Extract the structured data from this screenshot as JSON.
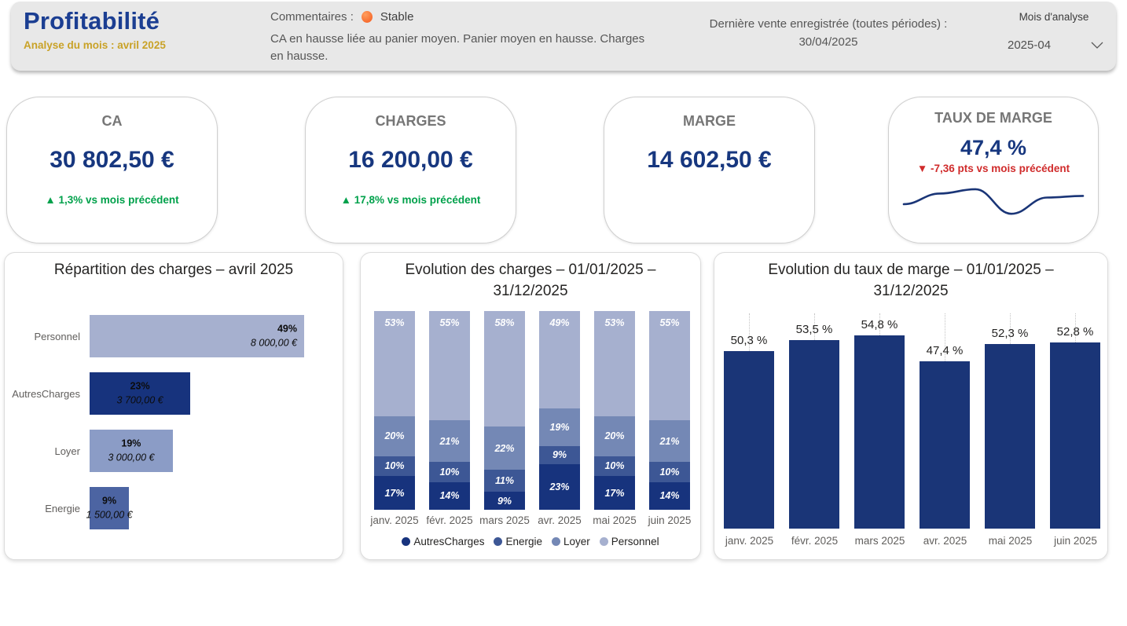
{
  "header": {
    "title": "Profitabilité",
    "subtitle": "Analyse du mois : avril 2025",
    "comments_label": "Commentaires :",
    "status": {
      "label": "Stable",
      "color": "#f4591d"
    },
    "comment_body": "CA en hausse liée au panier moyen. Panier moyen en hausse. Charges en hausse.",
    "last_sale_label": "Dernière vente enregistrée (toutes périodes) :",
    "last_sale_value": "30/04/2025",
    "month_filter": {
      "label": "Mois d'analyse",
      "value": "2025-04"
    }
  },
  "kpis": [
    {
      "title": "CA",
      "value": "30 802,50 €",
      "delta": "▲ 1,3% vs mois précédent",
      "trend": "up"
    },
    {
      "title": "CHARGES",
      "value": "16 200,00 €",
      "delta": "▲ 17,8% vs mois précédent",
      "trend": "up"
    },
    {
      "title": "MARGE",
      "value": "14 602,50 €",
      "delta": "",
      "trend": "none"
    },
    {
      "title": "TAUX DE MARGE",
      "value": "47,4 %",
      "delta": "▼ -7,36 pts vs mois précédent",
      "trend": "down",
      "sparkline": [
        50.3,
        53.5,
        54.8,
        47.4,
        52.3,
        52.8
      ]
    }
  ],
  "colors": {
    "navy": "#17377f",
    "green": "#00a14b",
    "red": "#d02b2b",
    "spark": "#1a3577"
  },
  "chart_data": [
    {
      "type": "bar",
      "orientation": "horizontal",
      "title": "Répartition des charges – avril 2025",
      "categories": [
        "Personnel",
        "AutresCharges",
        "Loyer",
        "Energie"
      ],
      "values_pct": [
        49,
        23,
        19,
        9
      ],
      "value_labels": [
        "49%",
        "23%",
        "19%",
        "9%"
      ],
      "values_eur": [
        "8 000,00 €",
        "3 700,00 €",
        "3 000,00 €",
        "1 500,00 €"
      ],
      "bar_colors": [
        "#a6b0cf",
        "#17337d",
        "#8b9cc6",
        "#4c64a2"
      ],
      "label_position": [
        "inside-end",
        "center",
        "center",
        "center"
      ],
      "xlim": [
        0,
        49
      ]
    },
    {
      "type": "bar",
      "stacked": true,
      "title": "Evolution des charges – 01/01/2025 – 31/12/2025",
      "categories": [
        "janv. 2025",
        "févr. 2025",
        "mars 2025",
        "avr. 2025",
        "mai 2025",
        "juin 2025"
      ],
      "series": [
        {
          "name": "AutresCharges",
          "color": "#17337d",
          "values": [
            17,
            14,
            9,
            23,
            17,
            14
          ]
        },
        {
          "name": "Energie",
          "color": "#3d5795",
          "values": [
            10,
            10,
            11,
            9,
            10,
            10
          ]
        },
        {
          "name": "Loyer",
          "color": "#7488b5",
          "values": [
            20,
            21,
            22,
            19,
            20,
            21
          ]
        },
        {
          "name": "Personnel",
          "color": "#a6b0cf",
          "values": [
            53,
            55,
            58,
            49,
            53,
            55
          ]
        }
      ],
      "ylim": [
        0,
        100
      ],
      "legend_position": "bottom"
    },
    {
      "type": "bar",
      "title": "Evolution du taux de marge – 01/01/2025 – 31/12/2025",
      "categories": [
        "janv. 2025",
        "févr. 2025",
        "mars 2025",
        "avr. 2025",
        "mai 2025",
        "juin 2025"
      ],
      "values": [
        50.3,
        53.5,
        54.8,
        47.4,
        52.3,
        52.8
      ],
      "value_labels": [
        "50,3 %",
        "53,5 %",
        "54,8 %",
        "47,4 %",
        "52,3 %",
        "52,8 %"
      ],
      "bar_color": "#1a3577",
      "grid": "dotted-vertical",
      "ylim": [
        0,
        61
      ]
    }
  ]
}
